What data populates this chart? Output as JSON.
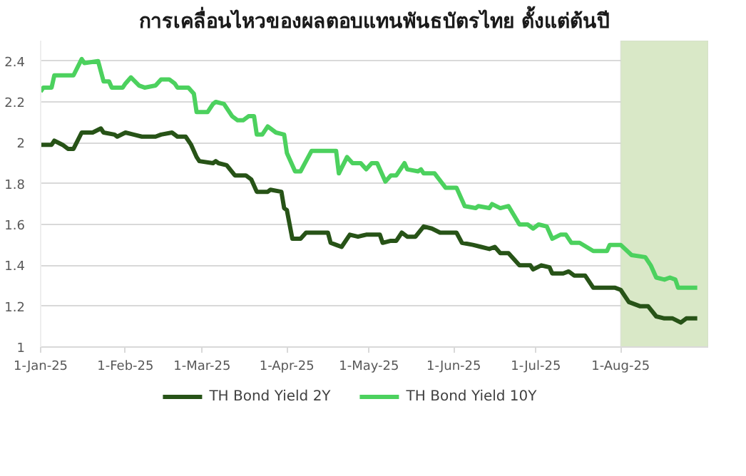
{
  "chart_data": {
    "type": "line",
    "title": "การเคลื่อนไหวของผลตอบแทนพันธบัตรไทย ตั้งแต่ต้นปี",
    "xlim": [
      "2025-01-01",
      "2025-09-02"
    ],
    "xticks": [
      {
        "value": "2025-01-01",
        "label": "1-Jan-25"
      },
      {
        "value": "2025-02-01",
        "label": "1-Feb-25"
      },
      {
        "value": "2025-03-01",
        "label": "1-Mar-25"
      },
      {
        "value": "2025-04-01",
        "label": "1-Apr-25"
      },
      {
        "value": "2025-05-01",
        "label": "1-May-25"
      },
      {
        "value": "2025-06-01",
        "label": "1-Jun-25"
      },
      {
        "value": "2025-07-01",
        "label": "1-Jul-25"
      },
      {
        "value": "2025-08-01",
        "label": "1-Aug-25"
      }
    ],
    "ylim": [
      1,
      2.5
    ],
    "yticks": [
      1,
      1.2,
      1.4,
      1.6,
      1.8,
      2,
      2.2,
      2.4
    ],
    "grid": "y",
    "legend": "bottom",
    "marker": "none",
    "line_style": "solid",
    "bands": [
      {
        "axis": "x",
        "from": "2025-08-01",
        "to": "2025-09-02",
        "color": "#d9e8c7"
      }
    ],
    "series": [
      {
        "name": "TH Bond Yield 2Y",
        "color": "#275317",
        "x": [
          "2025-01-01",
          "2025-01-05",
          "2025-01-06",
          "2025-01-09",
          "2025-01-11",
          "2025-01-13",
          "2025-01-16",
          "2025-01-20",
          "2025-01-23",
          "2025-01-24",
          "2025-01-28",
          "2025-01-29",
          "2025-02-01",
          "2025-02-04",
          "2025-02-07",
          "2025-02-12",
          "2025-02-14",
          "2025-02-18",
          "2025-02-20",
          "2025-02-23",
          "2025-02-25",
          "2025-02-27",
          "2025-02-28",
          "2025-03-05",
          "2025-03-06",
          "2025-03-07",
          "2025-03-10",
          "2025-03-13",
          "2025-03-17",
          "2025-03-19",
          "2025-03-21",
          "2025-03-25",
          "2025-03-26",
          "2025-03-30",
          "2025-03-31",
          "2025-04-01",
          "2025-04-03",
          "2025-04-06",
          "2025-04-08",
          "2025-04-16",
          "2025-04-17",
          "2025-04-19",
          "2025-04-21",
          "2025-04-24",
          "2025-04-27",
          "2025-04-30",
          "2025-05-05",
          "2025-05-06",
          "2025-05-09",
          "2025-05-11",
          "2025-05-13",
          "2025-05-15",
          "2025-05-18",
          "2025-05-21",
          "2025-05-24",
          "2025-05-27",
          "2025-06-02",
          "2025-06-04",
          "2025-06-08",
          "2025-06-11",
          "2025-06-14",
          "2025-06-16",
          "2025-06-18",
          "2025-06-21",
          "2025-06-25",
          "2025-06-29",
          "2025-06-30",
          "2025-07-03",
          "2025-07-06",
          "2025-07-07",
          "2025-07-11",
          "2025-07-13",
          "2025-07-15",
          "2025-07-19",
          "2025-07-22",
          "2025-07-30",
          "2025-08-01",
          "2025-08-04",
          "2025-08-08",
          "2025-08-11",
          "2025-08-14",
          "2025-08-17",
          "2025-08-20",
          "2025-08-23",
          "2025-08-25",
          "2025-08-29"
        ],
        "values": [
          1.99,
          1.99,
          2.01,
          1.99,
          1.97,
          1.97,
          2.05,
          2.05,
          2.07,
          2.05,
          2.04,
          2.03,
          2.05,
          2.04,
          2.03,
          2.03,
          2.04,
          2.05,
          2.03,
          2.03,
          1.99,
          1.93,
          1.91,
          1.9,
          1.91,
          1.9,
          1.89,
          1.84,
          1.84,
          1.82,
          1.76,
          1.76,
          1.77,
          1.76,
          1.68,
          1.67,
          1.53,
          1.53,
          1.56,
          1.56,
          1.51,
          1.5,
          1.49,
          1.55,
          1.54,
          1.55,
          1.55,
          1.51,
          1.52,
          1.52,
          1.56,
          1.54,
          1.54,
          1.59,
          1.58,
          1.56,
          1.56,
          1.51,
          1.5,
          1.49,
          1.48,
          1.49,
          1.46,
          1.46,
          1.4,
          1.4,
          1.38,
          1.4,
          1.39,
          1.36,
          1.36,
          1.37,
          1.35,
          1.35,
          1.29,
          1.29,
          1.28,
          1.22,
          1.2,
          1.2,
          1.15,
          1.14,
          1.14,
          1.12,
          1.14,
          1.14
        ]
      },
      {
        "name": "TH Bond Yield 10Y",
        "color": "#4cd15e",
        "x": [
          "2025-01-01",
          "2025-01-02",
          "2025-01-05",
          "2025-01-06",
          "2025-01-13",
          "2025-01-16",
          "2025-01-17",
          "2025-01-22",
          "2025-01-23",
          "2025-01-24",
          "2025-01-26",
          "2025-01-27",
          "2025-01-31",
          "2025-02-01",
          "2025-02-03",
          "2025-02-06",
          "2025-02-08",
          "2025-02-12",
          "2025-02-14",
          "2025-02-17",
          "2025-02-19",
          "2025-02-20",
          "2025-02-24",
          "2025-02-26",
          "2025-02-27",
          "2025-03-03",
          "2025-03-05",
          "2025-03-06",
          "2025-03-09",
          "2025-03-12",
          "2025-03-14",
          "2025-03-16",
          "2025-03-18",
          "2025-03-20",
          "2025-03-21",
          "2025-03-23",
          "2025-03-25",
          "2025-03-28",
          "2025-03-31",
          "2025-04-01",
          "2025-04-04",
          "2025-04-06",
          "2025-04-08",
          "2025-04-10",
          "2025-04-19",
          "2025-04-20",
          "2025-04-23",
          "2025-04-25",
          "2025-04-28",
          "2025-04-30",
          "2025-05-02",
          "2025-05-04",
          "2025-05-07",
          "2025-05-09",
          "2025-05-11",
          "2025-05-14",
          "2025-05-15",
          "2025-05-19",
          "2025-05-20",
          "2025-05-21",
          "2025-05-25",
          "2025-05-29",
          "2025-06-02",
          "2025-06-05",
          "2025-06-09",
          "2025-06-10",
          "2025-06-14",
          "2025-06-15",
          "2025-06-18",
          "2025-06-21",
          "2025-06-25",
          "2025-06-28",
          "2025-06-30",
          "2025-07-02",
          "2025-07-05",
          "2025-07-07",
          "2025-07-10",
          "2025-07-12",
          "2025-07-14",
          "2025-07-17",
          "2025-07-22",
          "2025-07-27",
          "2025-07-28",
          "2025-08-01",
          "2025-08-05",
          "2025-08-10",
          "2025-08-12",
          "2025-08-14",
          "2025-08-17",
          "2025-08-19",
          "2025-08-21",
          "2025-08-22",
          "2025-08-29"
        ],
        "values": [
          2.25,
          2.27,
          2.27,
          2.33,
          2.33,
          2.41,
          2.39,
          2.4,
          2.35,
          2.3,
          2.3,
          2.27,
          2.27,
          2.29,
          2.32,
          2.28,
          2.27,
          2.28,
          2.31,
          2.31,
          2.29,
          2.27,
          2.27,
          2.24,
          2.15,
          2.15,
          2.19,
          2.2,
          2.19,
          2.13,
          2.11,
          2.11,
          2.13,
          2.13,
          2.04,
          2.04,
          2.08,
          2.05,
          2.04,
          1.95,
          1.86,
          1.86,
          1.91,
          1.96,
          1.96,
          1.85,
          1.93,
          1.9,
          1.9,
          1.87,
          1.9,
          1.9,
          1.81,
          1.84,
          1.84,
          1.9,
          1.87,
          1.86,
          1.87,
          1.85,
          1.85,
          1.78,
          1.78,
          1.69,
          1.68,
          1.69,
          1.68,
          1.7,
          1.68,
          1.69,
          1.6,
          1.6,
          1.58,
          1.6,
          1.59,
          1.53,
          1.55,
          1.55,
          1.51,
          1.51,
          1.47,
          1.47,
          1.5,
          1.5,
          1.45,
          1.44,
          1.4,
          1.34,
          1.33,
          1.34,
          1.33,
          1.29,
          1.29
        ]
      }
    ]
  }
}
